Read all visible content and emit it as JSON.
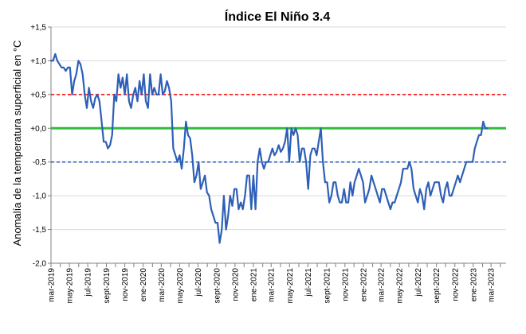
{
  "chart_data": {
    "type": "line",
    "title": "Índice El Niño 3.4",
    "ylabel": "Anomalía de la temperatura superficial en °C",
    "xlabel": "",
    "ylim": [
      -2.0,
      1.5
    ],
    "yticks": [
      {
        "value": 1.5,
        "label": "+1,5"
      },
      {
        "value": 1.0,
        "label": "+1,0"
      },
      {
        "value": 0.5,
        "label": "+0,5"
      },
      {
        "value": 0.0,
        "label": "+0,0"
      },
      {
        "value": -0.5,
        "label": "-0,5"
      },
      {
        "value": -1.0,
        "label": "-1,0"
      },
      {
        "value": -1.5,
        "label": "-1,5"
      },
      {
        "value": -2.0,
        "label": "-2,0"
      }
    ],
    "xlim": [
      "2019-03-01",
      "2023-04-20"
    ],
    "xticks": [
      {
        "date": "2019-03-01",
        "label": "mar-2019"
      },
      {
        "date": "2019-05-01",
        "label": "may-2019"
      },
      {
        "date": "2019-07-01",
        "label": "jul-2019"
      },
      {
        "date": "2019-09-01",
        "label": "sept-2019"
      },
      {
        "date": "2019-11-01",
        "label": "nov-2019"
      },
      {
        "date": "2020-01-01",
        "label": "ene-2020"
      },
      {
        "date": "2020-03-01",
        "label": "mar-2020"
      },
      {
        "date": "2020-05-01",
        "label": "may-2020"
      },
      {
        "date": "2020-07-01",
        "label": "jul-2020"
      },
      {
        "date": "2020-09-01",
        "label": "sept-2020"
      },
      {
        "date": "2020-11-01",
        "label": "nov-2020"
      },
      {
        "date": "2021-01-01",
        "label": "ene-2021"
      },
      {
        "date": "2021-03-01",
        "label": "mar-2021"
      },
      {
        "date": "2021-05-01",
        "label": "may-2021"
      },
      {
        "date": "2021-07-01",
        "label": "jul-2021"
      },
      {
        "date": "2021-09-01",
        "label": "sept-2021"
      },
      {
        "date": "2021-11-01",
        "label": "nov-2021"
      },
      {
        "date": "2022-01-01",
        "label": "ene-2022"
      },
      {
        "date": "2022-03-01",
        "label": "mar-2022"
      },
      {
        "date": "2022-05-01",
        "label": "may-2022"
      },
      {
        "date": "2022-07-01",
        "label": "jul-2022"
      },
      {
        "date": "2022-09-01",
        "label": "sept-2022"
      },
      {
        "date": "2022-11-01",
        "label": "nov-2022"
      },
      {
        "date": "2023-01-01",
        "label": "ene-2023"
      },
      {
        "date": "2023-03-01",
        "label": "mar-2023"
      }
    ],
    "grid": true,
    "reference_lines": [
      {
        "value": 0.5,
        "color": "#ff0000",
        "style": "dashed"
      },
      {
        "value": 0.0,
        "color": "#2fbf3a",
        "style": "solid"
      },
      {
        "value": -0.5,
        "color": "#1f5fbf",
        "style": "dashed"
      }
    ],
    "series": [
      {
        "color": "#2e5fb6",
        "points": [
          [
            "2019-03-01",
            1.0
          ],
          [
            "2019-03-08",
            1.0
          ],
          [
            "2019-03-15",
            1.1
          ],
          [
            "2019-03-22",
            1.0
          ],
          [
            "2019-03-29",
            0.95
          ],
          [
            "2019-04-05",
            0.9
          ],
          [
            "2019-04-12",
            0.9
          ],
          [
            "2019-04-19",
            0.85
          ],
          [
            "2019-04-26",
            0.9
          ],
          [
            "2019-05-03",
            0.9
          ],
          [
            "2019-05-10",
            0.5
          ],
          [
            "2019-05-17",
            0.7
          ],
          [
            "2019-05-24",
            0.8
          ],
          [
            "2019-05-31",
            1.0
          ],
          [
            "2019-06-07",
            0.95
          ],
          [
            "2019-06-14",
            0.8
          ],
          [
            "2019-06-21",
            0.5
          ],
          [
            "2019-06-28",
            0.3
          ],
          [
            "2019-07-05",
            0.6
          ],
          [
            "2019-07-12",
            0.4
          ],
          [
            "2019-07-19",
            0.3
          ],
          [
            "2019-07-26",
            0.45
          ],
          [
            "2019-08-02",
            0.5
          ],
          [
            "2019-08-09",
            0.4
          ],
          [
            "2019-08-16",
            0.1
          ],
          [
            "2019-08-23",
            -0.2
          ],
          [
            "2019-08-30",
            -0.2
          ],
          [
            "2019-09-06",
            -0.3
          ],
          [
            "2019-09-13",
            -0.25
          ],
          [
            "2019-09-20",
            -0.1
          ],
          [
            "2019-09-27",
            0.5
          ],
          [
            "2019-10-04",
            0.4
          ],
          [
            "2019-10-11",
            0.8
          ],
          [
            "2019-10-18",
            0.6
          ],
          [
            "2019-10-25",
            0.75
          ],
          [
            "2019-11-01",
            0.5
          ],
          [
            "2019-11-08",
            0.8
          ],
          [
            "2019-11-15",
            0.4
          ],
          [
            "2019-11-22",
            0.3
          ],
          [
            "2019-11-29",
            0.5
          ],
          [
            "2019-12-06",
            0.6
          ],
          [
            "2019-12-13",
            0.4
          ],
          [
            "2019-12-20",
            0.7
          ],
          [
            "2019-12-27",
            0.5
          ],
          [
            "2020-01-03",
            0.8
          ],
          [
            "2020-01-10",
            0.4
          ],
          [
            "2020-01-17",
            0.3
          ],
          [
            "2020-01-24",
            0.8
          ],
          [
            "2020-01-31",
            0.5
          ],
          [
            "2020-02-07",
            0.6
          ],
          [
            "2020-02-14",
            0.5
          ],
          [
            "2020-02-21",
            0.5
          ],
          [
            "2020-02-28",
            0.8
          ],
          [
            "2020-03-06",
            0.5
          ],
          [
            "2020-03-13",
            0.55
          ],
          [
            "2020-03-20",
            0.7
          ],
          [
            "2020-03-27",
            0.6
          ],
          [
            "2020-04-03",
            0.4
          ],
          [
            "2020-04-10",
            -0.3
          ],
          [
            "2020-04-17",
            -0.4
          ],
          [
            "2020-04-24",
            -0.5
          ],
          [
            "2020-05-01",
            -0.4
          ],
          [
            "2020-05-08",
            -0.6
          ],
          [
            "2020-05-15",
            -0.3
          ],
          [
            "2020-05-22",
            0.1
          ],
          [
            "2020-05-29",
            -0.1
          ],
          [
            "2020-06-05",
            -0.15
          ],
          [
            "2020-06-12",
            -0.4
          ],
          [
            "2020-06-19",
            -0.8
          ],
          [
            "2020-06-26",
            -0.7
          ],
          [
            "2020-07-03",
            -0.5
          ],
          [
            "2020-07-10",
            -0.9
          ],
          [
            "2020-07-17",
            -0.8
          ],
          [
            "2020-07-24",
            -0.7
          ],
          [
            "2020-07-31",
            -0.95
          ],
          [
            "2020-08-07",
            -1.0
          ],
          [
            "2020-08-14",
            -1.2
          ],
          [
            "2020-08-21",
            -1.3
          ],
          [
            "2020-08-28",
            -1.4
          ],
          [
            "2020-09-04",
            -1.4
          ],
          [
            "2020-09-11",
            -1.7
          ],
          [
            "2020-09-18",
            -1.5
          ],
          [
            "2020-09-25",
            -1.0
          ],
          [
            "2020-10-02",
            -1.5
          ],
          [
            "2020-10-09",
            -1.3
          ],
          [
            "2020-10-16",
            -1.0
          ],
          [
            "2020-10-23",
            -1.15
          ],
          [
            "2020-10-30",
            -0.9
          ],
          [
            "2020-11-06",
            -0.9
          ],
          [
            "2020-11-13",
            -1.2
          ],
          [
            "2020-11-20",
            -1.1
          ],
          [
            "2020-11-27",
            -1.2
          ],
          [
            "2020-12-04",
            -1.0
          ],
          [
            "2020-12-11",
            -0.7
          ],
          [
            "2020-12-18",
            -0.7
          ],
          [
            "2020-12-25",
            -1.2
          ],
          [
            "2021-01-01",
            -0.7
          ],
          [
            "2021-01-08",
            -1.2
          ],
          [
            "2021-01-15",
            -0.5
          ],
          [
            "2021-01-22",
            -0.3
          ],
          [
            "2021-01-29",
            -0.5
          ],
          [
            "2021-02-05",
            -0.6
          ],
          [
            "2021-02-12",
            -0.5
          ],
          [
            "2021-02-19",
            -0.5
          ],
          [
            "2021-02-26",
            -0.4
          ],
          [
            "2021-03-05",
            -0.3
          ],
          [
            "2021-03-12",
            -0.4
          ],
          [
            "2021-03-19",
            -0.35
          ],
          [
            "2021-03-26",
            -0.25
          ],
          [
            "2021-04-02",
            -0.35
          ],
          [
            "2021-04-09",
            -0.3
          ],
          [
            "2021-04-16",
            -0.2
          ],
          [
            "2021-04-23",
            0.0
          ],
          [
            "2021-04-30",
            -0.5
          ],
          [
            "2021-05-07",
            0.0
          ],
          [
            "2021-05-14",
            -0.1
          ],
          [
            "2021-05-21",
            0.0
          ],
          [
            "2021-05-28",
            -0.1
          ],
          [
            "2021-06-04",
            -0.5
          ],
          [
            "2021-06-11",
            -0.3
          ],
          [
            "2021-06-18",
            -0.3
          ],
          [
            "2021-06-25",
            -0.5
          ],
          [
            "2021-07-02",
            -0.9
          ],
          [
            "2021-07-09",
            -0.4
          ],
          [
            "2021-07-16",
            -0.3
          ],
          [
            "2021-07-23",
            -0.3
          ],
          [
            "2021-07-30",
            -0.4
          ],
          [
            "2021-08-06",
            -0.2
          ],
          [
            "2021-08-13",
            0.0
          ],
          [
            "2021-08-20",
            -0.5
          ],
          [
            "2021-08-27",
            -0.8
          ],
          [
            "2021-09-03",
            -0.8
          ],
          [
            "2021-09-10",
            -1.1
          ],
          [
            "2021-09-17",
            -1.0
          ],
          [
            "2021-09-24",
            -0.8
          ],
          [
            "2021-10-01",
            -0.8
          ],
          [
            "2021-10-08",
            -1.0
          ],
          [
            "2021-10-15",
            -1.1
          ],
          [
            "2021-10-22",
            -1.1
          ],
          [
            "2021-10-29",
            -0.9
          ],
          [
            "2021-11-05",
            -1.1
          ],
          [
            "2021-11-12",
            -1.1
          ],
          [
            "2021-11-19",
            -0.8
          ],
          [
            "2021-11-26",
            -1.0
          ],
          [
            "2021-12-03",
            -0.8
          ],
          [
            "2021-12-10",
            -0.7
          ],
          [
            "2021-12-17",
            -0.6
          ],
          [
            "2021-12-24",
            -0.7
          ],
          [
            "2021-12-31",
            -0.8
          ],
          [
            "2022-01-07",
            -1.1
          ],
          [
            "2022-01-14",
            -1.0
          ],
          [
            "2022-01-21",
            -0.9
          ],
          [
            "2022-01-28",
            -0.7
          ],
          [
            "2022-02-04",
            -0.8
          ],
          [
            "2022-02-11",
            -0.9
          ],
          [
            "2022-02-18",
            -1.0
          ],
          [
            "2022-02-25",
            -1.1
          ],
          [
            "2022-03-04",
            -0.9
          ],
          [
            "2022-03-11",
            -0.9
          ],
          [
            "2022-03-18",
            -1.0
          ],
          [
            "2022-03-25",
            -1.1
          ],
          [
            "2022-04-01",
            -1.2
          ],
          [
            "2022-04-08",
            -1.1
          ],
          [
            "2022-04-15",
            -1.1
          ],
          [
            "2022-04-22",
            -1.0
          ],
          [
            "2022-04-29",
            -0.9
          ],
          [
            "2022-05-06",
            -0.8
          ],
          [
            "2022-05-13",
            -0.6
          ],
          [
            "2022-05-20",
            -0.6
          ],
          [
            "2022-05-27",
            -0.6
          ],
          [
            "2022-06-03",
            -0.5
          ],
          [
            "2022-06-10",
            -0.6
          ],
          [
            "2022-06-17",
            -0.9
          ],
          [
            "2022-06-24",
            -1.0
          ],
          [
            "2022-07-01",
            -1.1
          ],
          [
            "2022-07-08",
            -0.9
          ],
          [
            "2022-07-15",
            -1.0
          ],
          [
            "2022-07-22",
            -1.2
          ],
          [
            "2022-07-29",
            -0.9
          ],
          [
            "2022-08-05",
            -0.8
          ],
          [
            "2022-08-12",
            -1.0
          ],
          [
            "2022-08-19",
            -0.9
          ],
          [
            "2022-08-26",
            -0.8
          ],
          [
            "2022-09-02",
            -0.8
          ],
          [
            "2022-09-09",
            -0.8
          ],
          [
            "2022-09-16",
            -1.0
          ],
          [
            "2022-09-23",
            -1.1
          ],
          [
            "2022-09-30",
            -0.9
          ],
          [
            "2022-10-07",
            -0.8
          ],
          [
            "2022-10-14",
            -1.0
          ],
          [
            "2022-10-21",
            -1.0
          ],
          [
            "2022-10-28",
            -0.9
          ],
          [
            "2022-11-04",
            -0.8
          ],
          [
            "2022-11-11",
            -0.7
          ],
          [
            "2022-11-18",
            -0.8
          ],
          [
            "2022-11-25",
            -0.7
          ],
          [
            "2022-12-02",
            -0.6
          ],
          [
            "2022-12-09",
            -0.5
          ],
          [
            "2022-12-16",
            -0.5
          ],
          [
            "2022-12-23",
            -0.5
          ],
          [
            "2022-12-30",
            -0.5
          ],
          [
            "2023-01-06",
            -0.3
          ],
          [
            "2023-01-13",
            -0.2
          ],
          [
            "2023-01-20",
            -0.1
          ],
          [
            "2023-01-27",
            -0.1
          ],
          [
            "2023-02-03",
            0.1
          ],
          [
            "2023-02-10",
            0.0
          ],
          [
            "2023-02-17",
            0.0
          ]
        ]
      }
    ]
  }
}
